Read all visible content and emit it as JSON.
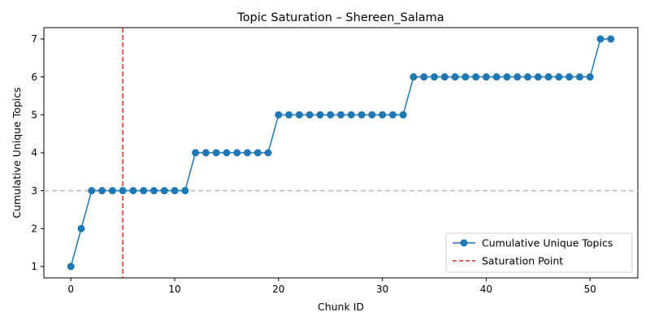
{
  "chart_data": {
    "type": "line",
    "title": "Topic Saturation – Shereen_Salama",
    "xlabel": "Chunk ID",
    "ylabel": "Cumulative Unique Topics",
    "xlim": [
      -2.6,
      54.6
    ],
    "ylim": [
      0.7,
      7.3
    ],
    "xticks": [
      0,
      10,
      20,
      30,
      40,
      50
    ],
    "yticks": [
      1,
      2,
      3,
      4,
      5,
      6,
      7
    ],
    "grid": false,
    "legend_position": "lower-right",
    "series": [
      {
        "name": "Cumulative Unique Topics",
        "color": "#1f77b4",
        "marker": "circle",
        "x": [
          0,
          1,
          2,
          3,
          4,
          5,
          6,
          7,
          8,
          9,
          10,
          11,
          12,
          13,
          14,
          15,
          16,
          17,
          18,
          19,
          20,
          21,
          22,
          23,
          24,
          25,
          26,
          27,
          28,
          29,
          30,
          31,
          32,
          33,
          34,
          35,
          36,
          37,
          38,
          39,
          40,
          41,
          42,
          43,
          44,
          45,
          46,
          47,
          48,
          49,
          50,
          51,
          52
        ],
        "y": [
          1,
          2,
          3,
          3,
          3,
          3,
          3,
          3,
          3,
          3,
          3,
          3,
          4,
          4,
          4,
          4,
          4,
          4,
          4,
          4,
          5,
          5,
          5,
          5,
          5,
          5,
          5,
          5,
          5,
          5,
          5,
          5,
          5,
          6,
          6,
          6,
          6,
          6,
          6,
          6,
          6,
          6,
          6,
          6,
          6,
          6,
          6,
          6,
          6,
          6,
          6,
          7,
          7
        ]
      }
    ],
    "saturation_point": {
      "name": "Saturation Point",
      "x": 5,
      "color": "#d62728"
    },
    "reference_line": {
      "y": 3,
      "color": "#bbbbbb"
    }
  }
}
